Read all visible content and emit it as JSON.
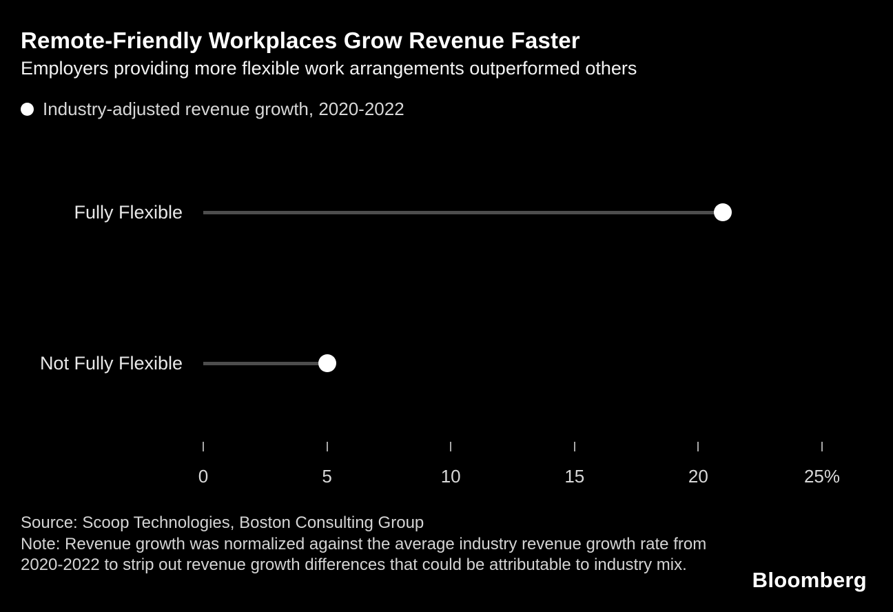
{
  "header": {
    "title": "Remote-Friendly Workplaces Grow Revenue Faster",
    "subtitle": "Employers providing more flexible work arrangements outperformed others"
  },
  "legend": {
    "label": "Industry-adjusted revenue growth, 2020-2022",
    "marker": "white-dot",
    "marker_color": "#ffffff"
  },
  "chart_data": {
    "type": "scatter",
    "variant": "horizontal-lollipop",
    "categories": [
      "Fully Flexible",
      "Not Fully Flexible"
    ],
    "values": [
      21,
      5
    ],
    "unit": "%",
    "series_label": "Industry-adjusted revenue growth, 2020-2022",
    "title": "Remote-Friendly Workplaces Grow Revenue Faster",
    "xlabel": "",
    "ylabel": "",
    "xlim": [
      0,
      25
    ],
    "xticks": [
      0,
      5,
      10,
      15,
      20,
      25
    ],
    "xtick_labels": [
      "0",
      "5",
      "10",
      "15",
      "20",
      "25%"
    ],
    "grid": false,
    "legend_position": "top-left",
    "colors": {
      "dot": "#ffffff",
      "stem": "#4d4d4d",
      "background": "#000000"
    }
  },
  "footer": {
    "source": "Source: Scoop Technologies, Boston Consulting Group",
    "note": "Note: Revenue growth was normalized against the average industry revenue growth rate from 2020-2022 to strip out revenue growth differences that could be attributable to industry mix.",
    "brand": "Bloomberg"
  }
}
